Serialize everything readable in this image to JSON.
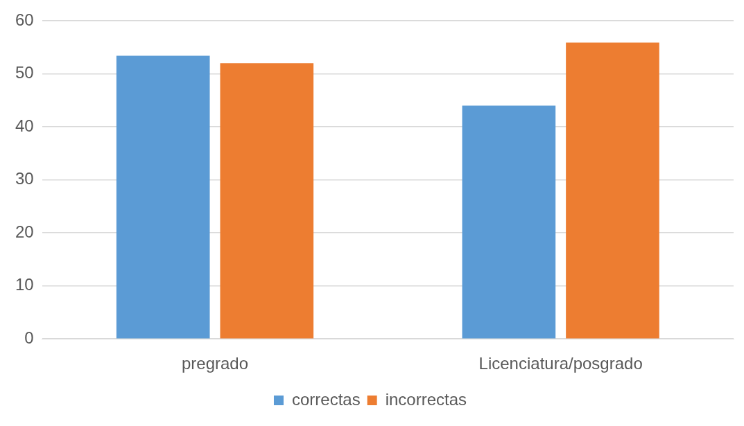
{
  "chart_data": {
    "type": "bar",
    "categories": [
      "pregrado",
      "Licenciatura/posgrado"
    ],
    "series": [
      {
        "name": "correctas",
        "color": "#5b9bd5",
        "values": [
          53.4,
          44.0
        ]
      },
      {
        "name": "incorrectas",
        "color": "#ed7d31",
        "values": [
          52.0,
          55.9
        ]
      }
    ],
    "ylim": [
      0,
      60
    ],
    "yticks": [
      0,
      10,
      20,
      30,
      40,
      50,
      60
    ],
    "grid": "y",
    "legend": "bottom"
  }
}
